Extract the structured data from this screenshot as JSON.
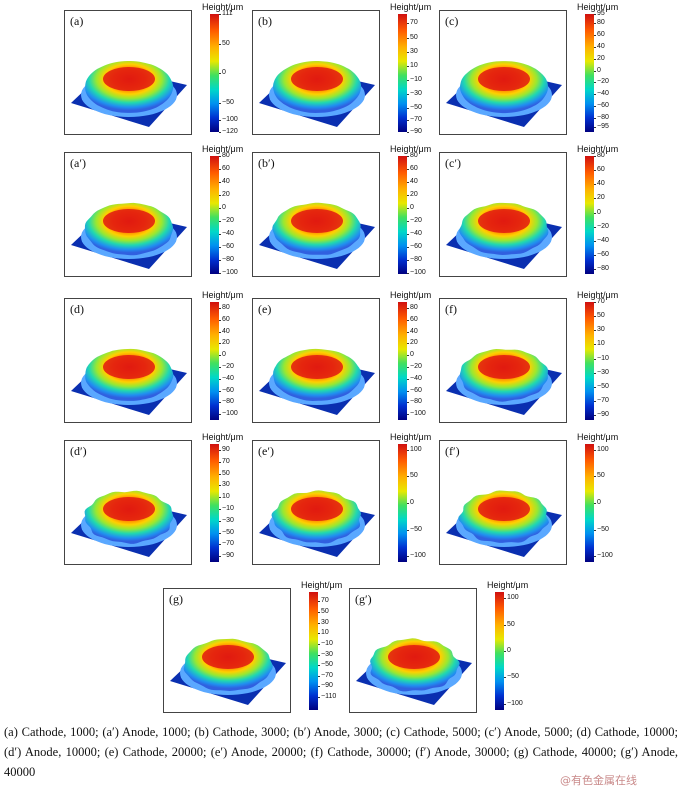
{
  "colorbar_title": "Height/μm",
  "panels": [
    {
      "label": "(a)",
      "ticks": [
        "111",
        "50",
        "0",
        "−50",
        "−100",
        "−120"
      ],
      "tick_pos": [
        0,
        0.25,
        0.5,
        0.75,
        0.9,
        1.0
      ],
      "rough": 0.05
    },
    {
      "label": "(b)",
      "ticks": [
        "70",
        "50",
        "30",
        "10",
        "−10",
        "−30",
        "−50",
        "−70",
        "−90"
      ],
      "tick_pos": [
        0.08,
        0.2,
        0.32,
        0.44,
        0.56,
        0.68,
        0.8,
        0.9,
        1.0
      ],
      "rough": 0.05
    },
    {
      "label": "(c)",
      "ticks": [
        "95",
        "80",
        "60",
        "40",
        "20",
        "0",
        "−20",
        "−40",
        "−60",
        "−80",
        "−95"
      ],
      "tick_pos": [
        0,
        0.08,
        0.18,
        0.28,
        0.38,
        0.48,
        0.58,
        0.68,
        0.78,
        0.88,
        0.96
      ],
      "rough": 0.05
    },
    {
      "label": "(a′)",
      "ticks": [
        "80",
        "60",
        "40",
        "20",
        "0",
        "−20",
        "−40",
        "−60",
        "−80",
        "−100"
      ],
      "tick_pos": [
        0,
        0.11,
        0.22,
        0.33,
        0.44,
        0.55,
        0.66,
        0.77,
        0.88,
        0.99
      ],
      "rough": 0.2
    },
    {
      "label": "(b′)",
      "ticks": [
        "80",
        "60",
        "40",
        "20",
        "0",
        "−20",
        "−40",
        "−60",
        "−80",
        "−100"
      ],
      "tick_pos": [
        0,
        0.11,
        0.22,
        0.33,
        0.44,
        0.55,
        0.66,
        0.77,
        0.88,
        0.99
      ],
      "rough": 0.25
    },
    {
      "label": "(c′)",
      "ticks": [
        "80",
        "60",
        "40",
        "20",
        "0",
        "−20",
        "−40",
        "−60",
        "−80"
      ],
      "tick_pos": [
        0,
        0.12,
        0.24,
        0.36,
        0.48,
        0.6,
        0.72,
        0.84,
        0.96
      ],
      "rough": 0.3
    },
    {
      "label": "(d)",
      "ticks": [
        "80",
        "60",
        "40",
        "20",
        "0",
        "−20",
        "−40",
        "−60",
        "−80",
        "−100"
      ],
      "tick_pos": [
        0.05,
        0.15,
        0.25,
        0.35,
        0.45,
        0.55,
        0.65,
        0.75,
        0.85,
        0.95
      ],
      "rough": 0.1
    },
    {
      "label": "(e)",
      "ticks": [
        "80",
        "60",
        "40",
        "20",
        "0",
        "−20",
        "−40",
        "−60",
        "−80",
        "−100"
      ],
      "tick_pos": [
        0.05,
        0.15,
        0.25,
        0.35,
        0.45,
        0.55,
        0.65,
        0.75,
        0.85,
        0.95
      ],
      "rough": 0.12
    },
    {
      "label": "(f)",
      "ticks": [
        "70",
        "50",
        "30",
        "10",
        "−10",
        "−30",
        "−50",
        "−70",
        "−90"
      ],
      "tick_pos": [
        0,
        0.12,
        0.24,
        0.36,
        0.48,
        0.6,
        0.72,
        0.84,
        0.96
      ],
      "rough": 0.35
    },
    {
      "label": "(d′)",
      "ticks": [
        "90",
        "70",
        "50",
        "30",
        "10",
        "−10",
        "−30",
        "−50",
        "−70",
        "−90"
      ],
      "tick_pos": [
        0.05,
        0.15,
        0.25,
        0.35,
        0.45,
        0.55,
        0.65,
        0.75,
        0.85,
        0.95
      ],
      "rough": 0.5
    },
    {
      "label": "(e′)",
      "ticks": [
        "100",
        "50",
        "0",
        "−50",
        "−100"
      ],
      "tick_pos": [
        0.05,
        0.27,
        0.5,
        0.73,
        0.95
      ],
      "rough": 0.55
    },
    {
      "label": "(f′)",
      "ticks": [
        "100",
        "50",
        "0",
        "−50",
        "−100"
      ],
      "tick_pos": [
        0.05,
        0.27,
        0.5,
        0.73,
        0.95
      ],
      "rough": 0.6
    },
    {
      "label": "(g)",
      "ticks": [
        "70",
        "50",
        "30",
        "10",
        "−10",
        "−30",
        "−50",
        "−70",
        "−90",
        "−110"
      ],
      "tick_pos": [
        0.08,
        0.17,
        0.26,
        0.35,
        0.44,
        0.53,
        0.62,
        0.71,
        0.8,
        0.89
      ],
      "rough": 0.3
    },
    {
      "label": "(g′)",
      "ticks": [
        "100",
        "50",
        "0",
        "−50",
        "−100"
      ],
      "tick_pos": [
        0.05,
        0.28,
        0.5,
        0.72,
        0.95
      ],
      "rough": 0.6
    }
  ],
  "caption": "(a) Cathode, 1000; (a′) Anode, 1000; (b) Cathode, 3000; (b′) Anode, 3000; (c) Cathode, 5000; (c′) Anode, 5000; (d) Cathode, 10000; (d′) Anode, 10000; (e) Cathode, 20000; (e′) Anode, 20000; (f) Cathode, 30000; (f′) Anode, 30000; (g) Cathode, 40000; (g′) Anode, 40000",
  "watermark": "@有色金属在线",
  "colors": {
    "substrate": "#0a2fb0",
    "peak": "#e01a10"
  }
}
